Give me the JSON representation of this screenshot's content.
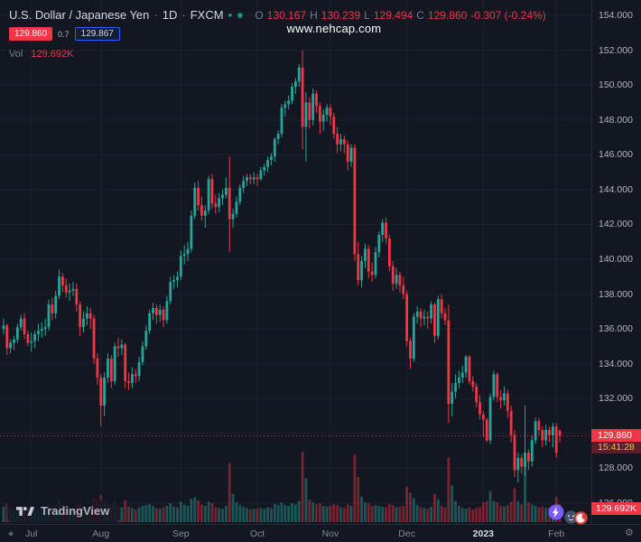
{
  "header": {
    "symbol_title": "U.S. Dollar / Japanese Yen",
    "separator": "·",
    "timeframe": "1D",
    "exchange": "FXCM",
    "status_icons": {
      "dot": "●",
      "eye": "◉"
    },
    "ohlc": {
      "o_label": "O",
      "o_value": "130.167",
      "h_label": "H",
      "h_value": "130.239",
      "l_label": "L",
      "l_value": "129.494",
      "c_label": "C",
      "c_value": "129.860",
      "change": "-0.307 (-0.24%)"
    },
    "sell_price": "129.860",
    "spread": "0.7",
    "buy_price": "129.867",
    "vol_label": "Vol",
    "vol_value": "129.692K"
  },
  "watermark": "www.nehcap.com",
  "price_marker": {
    "price": "129.860",
    "countdown": "15:41:28"
  },
  "volume_marker": "129.692K",
  "logo_text": "TradingView",
  "icons": {
    "gear": "⚙",
    "corner": "◆"
  },
  "chart_data": {
    "type": "candlestick",
    "symbol": "USD/JPY",
    "timeframe": "1D",
    "exchange": "FXCM",
    "ylim": [
      126,
      154
    ],
    "grid": true,
    "price_ticks": [
      "154.000",
      "152.000",
      "150.000",
      "148.000",
      "146.000",
      "144.000",
      "142.000",
      "140.000",
      "138.000",
      "136.000",
      "134.000",
      "132.000",
      "130.000",
      "128.000",
      "126.000"
    ],
    "time_labels": [
      {
        "text": "Jul",
        "i": 8
      },
      {
        "text": "Aug",
        "i": 28
      },
      {
        "text": "Sep",
        "i": 51
      },
      {
        "text": "Oct",
        "i": 73
      },
      {
        "text": "Nov",
        "i": 94
      },
      {
        "text": "Dec",
        "i": 116
      },
      {
        "text": "2023",
        "i": 138,
        "major": true
      },
      {
        "text": "Feb",
        "i": 159
      }
    ],
    "colors": {
      "up": "#26a69a",
      "down": "#f23645",
      "grid": "#1c212e",
      "background": "#131722",
      "axis_text": "#b2b5be"
    },
    "last_price": 129.86,
    "last_volume_k": 129.692,
    "volume_unit": "K",
    "candles": [
      [
        136.0,
        136.6,
        135.7,
        136.2,
        110
      ],
      [
        136.2,
        136.3,
        134.5,
        134.9,
        130
      ],
      [
        134.9,
        135.4,
        134.6,
        135.2,
        100
      ],
      [
        135.2,
        135.6,
        134.8,
        135.4,
        95
      ],
      [
        135.4,
        136.3,
        135.2,
        136.1,
        105
      ],
      [
        136.1,
        136.8,
        135.9,
        136.6,
        110
      ],
      [
        136.6,
        136.9,
        135.4,
        135.7,
        115
      ],
      [
        135.7,
        135.9,
        135.0,
        135.2,
        100
      ],
      [
        135.2,
        135.8,
        134.7,
        135.3,
        115
      ],
      [
        135.3,
        135.9,
        134.9,
        135.7,
        100
      ],
      [
        135.7,
        136.3,
        135.3,
        135.9,
        105
      ],
      [
        135.9,
        136.4,
        135.5,
        136.0,
        95
      ],
      [
        136.0,
        136.6,
        135.6,
        136.1,
        110
      ],
      [
        136.1,
        137.7,
        135.9,
        137.4,
        135
      ],
      [
        137.4,
        137.8,
        136.5,
        136.9,
        120
      ],
      [
        136.9,
        138.2,
        136.6,
        137.9,
        125
      ],
      [
        137.9,
        139.4,
        137.7,
        139.0,
        155
      ],
      [
        139.0,
        139.2,
        138.1,
        138.5,
        130
      ],
      [
        138.5,
        138.9,
        137.8,
        138.1,
        105
      ],
      [
        138.1,
        138.6,
        137.6,
        138.2,
        100
      ],
      [
        138.2,
        138.7,
        137.9,
        138.3,
        95
      ],
      [
        138.3,
        138.6,
        137.0,
        137.4,
        125
      ],
      [
        137.4,
        137.6,
        135.6,
        136.1,
        145
      ],
      [
        136.1,
        137.0,
        135.8,
        136.6,
        105
      ],
      [
        136.6,
        137.3,
        136.2,
        136.9,
        100
      ],
      [
        136.9,
        137.2,
        136.0,
        136.6,
        110
      ],
      [
        136.6,
        136.8,
        134.0,
        134.3,
        165
      ],
      [
        134.3,
        134.6,
        132.8,
        133.2,
        155
      ],
      [
        133.2,
        133.4,
        130.4,
        131.6,
        190
      ],
      [
        131.6,
        133.5,
        131.0,
        133.2,
        160
      ],
      [
        133.2,
        134.6,
        132.9,
        134.3,
        135
      ],
      [
        134.3,
        134.5,
        132.6,
        133.0,
        130
      ],
      [
        133.0,
        135.2,
        132.8,
        135.0,
        150
      ],
      [
        135.0,
        135.5,
        134.4,
        134.9,
        115
      ],
      [
        134.9,
        135.4,
        134.5,
        135.1,
        105
      ],
      [
        135.1,
        135.2,
        132.6,
        133.0,
        155
      ],
      [
        133.0,
        133.5,
        132.5,
        132.9,
        110
      ],
      [
        132.9,
        133.8,
        132.6,
        133.4,
        100
      ],
      [
        133.4,
        133.7,
        132.9,
        133.3,
        90
      ],
      [
        133.3,
        134.4,
        133.0,
        134.1,
        105
      ],
      [
        134.1,
        135.3,
        133.9,
        135.0,
        115
      ],
      [
        135.0,
        136.2,
        134.8,
        135.9,
        120
      ],
      [
        135.9,
        137.1,
        135.7,
        136.9,
        130
      ],
      [
        136.9,
        137.5,
        136.5,
        137.2,
        115
      ],
      [
        137.2,
        137.4,
        136.3,
        136.8,
        100
      ],
      [
        136.8,
        137.4,
        136.4,
        137.1,
        95
      ],
      [
        137.1,
        137.3,
        136.1,
        136.5,
        105
      ],
      [
        136.5,
        137.9,
        136.3,
        137.6,
        115
      ],
      [
        137.6,
        139.0,
        137.4,
        138.7,
        135
      ],
      [
        138.7,
        139.1,
        138.3,
        138.8,
        110
      ],
      [
        138.8,
        139.3,
        138.4,
        139.0,
        105
      ],
      [
        139.0,
        140.5,
        138.8,
        140.2,
        145
      ],
      [
        140.2,
        140.8,
        139.7,
        140.3,
        125
      ],
      [
        140.3,
        141.0,
        139.9,
        140.6,
        115
      ],
      [
        140.6,
        142.8,
        140.4,
        142.5,
        165
      ],
      [
        142.5,
        144.4,
        142.3,
        144.1,
        175
      ],
      [
        144.1,
        144.5,
        142.8,
        143.1,
        155
      ],
      [
        143.1,
        143.6,
        142.2,
        142.5,
        125
      ],
      [
        142.5,
        143.1,
        141.8,
        142.8,
        115
      ],
      [
        142.8,
        144.8,
        142.6,
        144.6,
        145
      ],
      [
        144.6,
        144.9,
        142.9,
        143.2,
        135
      ],
      [
        143.2,
        143.7,
        142.6,
        143.0,
        105
      ],
      [
        143.0,
        143.8,
        142.7,
        143.5,
        100
      ],
      [
        143.5,
        144.0,
        143.1,
        143.7,
        95
      ],
      [
        143.7,
        144.7,
        143.5,
        144.1,
        115
      ],
      [
        144.1,
        145.9,
        140.4,
        142.3,
        420
      ],
      [
        142.3,
        142.9,
        141.8,
        142.6,
        200
      ],
      [
        142.6,
        143.6,
        142.4,
        143.3,
        140
      ],
      [
        143.3,
        144.3,
        143.1,
        144.1,
        120
      ],
      [
        144.1,
        144.8,
        143.8,
        144.5,
        110
      ],
      [
        144.5,
        144.9,
        144.2,
        144.7,
        100
      ],
      [
        144.7,
        144.9,
        144.3,
        144.6,
        90
      ],
      [
        144.6,
        145.0,
        144.3,
        144.7,
        95
      ],
      [
        144.7,
        144.9,
        144.2,
        144.6,
        95
      ],
      [
        144.6,
        145.3,
        144.5,
        145.1,
        100
      ],
      [
        145.1,
        145.5,
        144.8,
        145.3,
        95
      ],
      [
        145.3,
        145.9,
        145.0,
        145.7,
        105
      ],
      [
        145.7,
        146.1,
        145.4,
        145.9,
        100
      ],
      [
        145.9,
        147.0,
        145.6,
        146.9,
        130
      ],
      [
        146.9,
        147.4,
        146.6,
        147.2,
        120
      ],
      [
        147.2,
        148.9,
        147.0,
        148.7,
        140
      ],
      [
        148.7,
        149.1,
        148.2,
        148.9,
        120
      ],
      [
        148.9,
        149.4,
        148.6,
        149.1,
        115
      ],
      [
        149.1,
        150.1,
        148.9,
        149.9,
        135
      ],
      [
        149.9,
        150.4,
        149.5,
        150.2,
        125
      ],
      [
        150.2,
        151.2,
        149.9,
        151.0,
        150
      ],
      [
        151.0,
        152.0,
        146.3,
        147.6,
        500
      ],
      [
        147.6,
        149.6,
        145.6,
        149.0,
        310
      ],
      [
        149.0,
        149.3,
        147.5,
        148.0,
        160
      ],
      [
        148.0,
        149.8,
        147.7,
        149.5,
        140
      ],
      [
        149.5,
        149.7,
        148.4,
        148.8,
        125
      ],
      [
        148.8,
        149.0,
        147.2,
        147.9,
        135
      ],
      [
        147.9,
        148.6,
        147.4,
        148.3,
        115
      ],
      [
        148.3,
        148.9,
        147.9,
        148.7,
        110
      ],
      [
        148.7,
        148.9,
        147.7,
        148.2,
        115
      ],
      [
        148.2,
        148.4,
        146.9,
        147.2,
        125
      ],
      [
        147.2,
        147.6,
        146.1,
        146.6,
        120
      ],
      [
        146.6,
        147.2,
        146.2,
        146.9,
        105
      ],
      [
        146.9,
        147.1,
        146.1,
        146.6,
        100
      ],
      [
        146.6,
        146.8,
        145.1,
        145.6,
        125
      ],
      [
        145.6,
        146.6,
        145.3,
        146.4,
        115
      ],
      [
        146.4,
        146.6,
        139.9,
        140.3,
        480
      ],
      [
        140.3,
        141.0,
        138.5,
        138.8,
        320
      ],
      [
        138.8,
        140.2,
        138.4,
        139.9,
        180
      ],
      [
        139.9,
        140.9,
        139.5,
        140.6,
        140
      ],
      [
        140.6,
        140.8,
        138.9,
        139.3,
        135
      ],
      [
        139.3,
        139.8,
        138.7,
        139.1,
        115
      ],
      [
        139.1,
        140.7,
        138.9,
        140.4,
        120
      ],
      [
        140.4,
        141.6,
        140.1,
        141.4,
        115
      ],
      [
        141.4,
        142.3,
        141.0,
        142.1,
        110
      ],
      [
        142.1,
        142.4,
        140.9,
        141.2,
        105
      ],
      [
        141.2,
        141.4,
        139.3,
        139.6,
        130
      ],
      [
        139.6,
        139.9,
        138.2,
        138.6,
        120
      ],
      [
        138.6,
        139.5,
        138.3,
        139.1,
        105
      ],
      [
        139.1,
        139.3,
        138.1,
        138.5,
        110
      ],
      [
        138.5,
        139.0,
        137.7,
        138.0,
        115
      ],
      [
        138.0,
        138.2,
        135.0,
        135.3,
        250
      ],
      [
        135.3,
        135.5,
        133.7,
        134.3,
        210
      ],
      [
        134.3,
        136.9,
        134.1,
        136.7,
        170
      ],
      [
        136.7,
        137.3,
        136.3,
        137.0,
        120
      ],
      [
        137.0,
        137.2,
        136.1,
        136.6,
        105
      ],
      [
        136.6,
        137.1,
        136.2,
        136.7,
        100
      ],
      [
        136.7,
        137.0,
        136.0,
        136.6,
        95
      ],
      [
        136.6,
        137.6,
        136.3,
        137.4,
        110
      ],
      [
        137.4,
        137.5,
        135.2,
        135.6,
        200
      ],
      [
        135.6,
        137.9,
        135.4,
        137.7,
        160
      ],
      [
        137.7,
        138.0,
        136.6,
        136.9,
        115
      ],
      [
        136.9,
        137.2,
        136.2,
        136.5,
        105
      ],
      [
        136.5,
        137.4,
        130.6,
        131.7,
        460
      ],
      [
        131.7,
        132.9,
        131.0,
        132.4,
        260
      ],
      [
        132.4,
        133.4,
        132.0,
        132.9,
        150
      ],
      [
        132.9,
        133.6,
        132.6,
        133.2,
        115
      ],
      [
        133.2,
        133.9,
        132.9,
        133.5,
        100
      ],
      [
        133.5,
        134.5,
        133.2,
        134.4,
        95
      ],
      [
        134.4,
        134.5,
        132.8,
        133.0,
        105
      ],
      [
        133.0,
        133.3,
        132.4,
        132.7,
        90
      ],
      [
        132.7,
        132.9,
        131.5,
        131.8,
        100
      ],
      [
        131.8,
        132.2,
        130.8,
        131.1,
        105
      ],
      [
        131.1,
        131.3,
        129.8,
        130.8,
        140
      ],
      [
        130.8,
        130.9,
        129.5,
        129.6,
        150
      ],
      [
        129.6,
        132.3,
        129.4,
        132.1,
        220
      ],
      [
        132.1,
        133.6,
        131.9,
        133.4,
        150
      ],
      [
        133.4,
        133.5,
        131.8,
        132.1,
        140
      ],
      [
        132.1,
        132.5,
        131.4,
        131.9,
        115
      ],
      [
        131.9,
        132.7,
        131.6,
        132.3,
        110
      ],
      [
        132.3,
        132.5,
        130.9,
        131.3,
        120
      ],
      [
        131.3,
        131.6,
        129.5,
        129.9,
        145
      ],
      [
        129.9,
        130.2,
        127.5,
        127.9,
        240
      ],
      [
        127.9,
        128.9,
        127.2,
        128.6,
        150
      ],
      [
        128.6,
        128.8,
        127.7,
        128.1,
        125
      ],
      [
        128.1,
        131.6,
        127.6,
        128.9,
        430
      ],
      [
        128.9,
        129.1,
        127.9,
        128.4,
        140
      ],
      [
        128.4,
        129.9,
        128.1,
        129.6,
        125
      ],
      [
        129.6,
        130.9,
        129.4,
        130.7,
        115
      ],
      [
        130.7,
        130.9,
        129.9,
        130.2,
        105
      ],
      [
        130.2,
        130.4,
        129.2,
        129.6,
        110
      ],
      [
        129.6,
        130.5,
        129.3,
        130.2,
        100
      ],
      [
        130.2,
        130.4,
        129.5,
        129.9,
        105
      ],
      [
        129.9,
        130.6,
        129.2,
        130.4,
        115
      ],
      [
        130.4,
        130.6,
        128.6,
        128.9,
        180
      ],
      [
        130.167,
        130.239,
        129.494,
        129.86,
        129.692
      ]
    ]
  }
}
